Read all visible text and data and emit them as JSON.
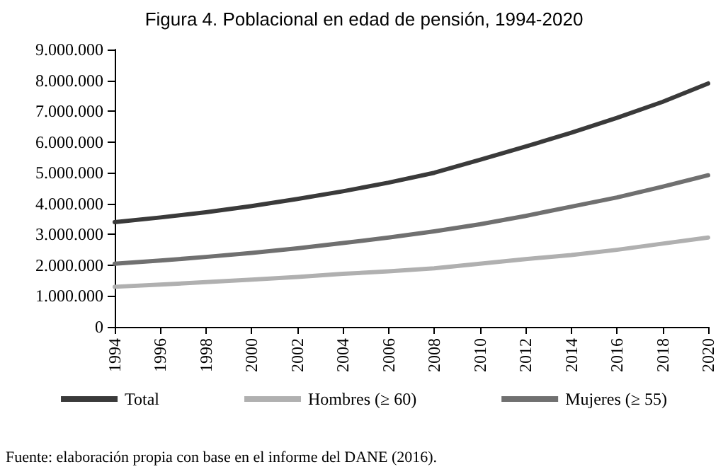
{
  "chart_data": {
    "type": "line",
    "title": "Figura 4. Poblacional en edad de pensión, 1994-2020",
    "x": [
      1994,
      1996,
      1998,
      2000,
      2002,
      2004,
      2006,
      2008,
      2010,
      2012,
      2014,
      2016,
      2018,
      2020
    ],
    "series": [
      {
        "name": "Total",
        "color": "#3a3a3a",
        "values": [
          3400000,
          3550000,
          3720000,
          3920000,
          4150000,
          4400000,
          4680000,
          5000000,
          5420000,
          5850000,
          6300000,
          6780000,
          7300000,
          7900000
        ]
      },
      {
        "name": "Hombres (≥ 60)",
        "color": "#b0b0b0",
        "values": [
          1300000,
          1370000,
          1450000,
          1530000,
          1620000,
          1720000,
          1800000,
          1900000,
          2050000,
          2200000,
          2330000,
          2500000,
          2700000,
          2900000
        ]
      },
      {
        "name": "Mujeres (≥ 55)",
        "color": "#707070",
        "values": [
          2050000,
          2150000,
          2270000,
          2400000,
          2550000,
          2720000,
          2900000,
          3100000,
          3330000,
          3600000,
          3900000,
          4200000,
          4550000,
          4920000
        ]
      }
    ],
    "xlim": [
      1994,
      2020
    ],
    "xticks": [
      1994,
      1996,
      1998,
      2000,
      2002,
      2004,
      2006,
      2008,
      2010,
      2012,
      2014,
      2016,
      2018,
      2020
    ],
    "ylim": [
      0,
      9000000
    ],
    "yticks": [
      0,
      {
        "value": 1000000,
        "label": "1.000.000"
      },
      {
        "value": 2000000,
        "label": "2.000.000"
      },
      {
        "value": 3000000,
        "label": "3.000.000"
      },
      {
        "value": 4000000,
        "label": "4.000.000"
      },
      {
        "value": 5000000,
        "label": "5.000.000"
      },
      {
        "value": 6000000,
        "label": "6.000.000"
      },
      {
        "value": 7000000,
        "label": "7.000.000"
      },
      {
        "value": 8000000,
        "label": "8.000.000"
      },
      {
        "value": 9000000,
        "label": "9.000.000"
      }
    ],
    "grid": false,
    "legend": "bottom",
    "marker": "none",
    "line_style": "solid",
    "annotations": [
      "Fuente: elaboración propia con base en el informe del DANE (2016)."
    ]
  }
}
